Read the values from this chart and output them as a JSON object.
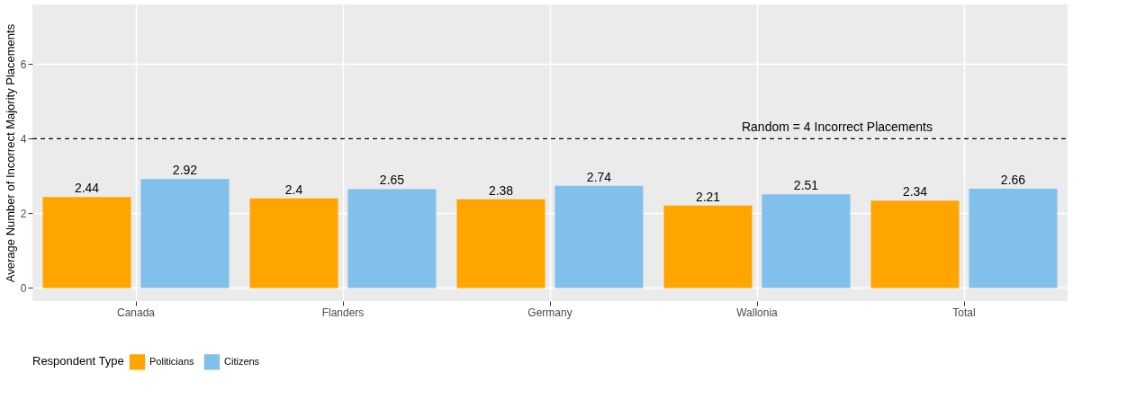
{
  "chart_data": {
    "type": "bar",
    "ylabel": "Average Number of Incorrect Majority Placements",
    "legend_title": "Respondent Type",
    "categories": [
      "Canada",
      "Flanders",
      "Germany",
      "Wallonia",
      "Total"
    ],
    "series": [
      {
        "name": "Politicians",
        "color": "#ffa500",
        "values": [
          2.44,
          2.4,
          2.38,
          2.21,
          2.34
        ]
      },
      {
        "name": "Citizens",
        "color": "#80c0eb",
        "values": [
          2.92,
          2.65,
          2.74,
          2.51,
          2.66
        ]
      }
    ],
    "ylim": [
      -0.35,
      7.6
    ],
    "yticks": [
      0,
      2,
      4,
      6
    ],
    "grid": true,
    "legend": "bottom",
    "data_labels": true,
    "ref_lines": [
      {
        "axis": "y",
        "value": 4,
        "label": "Random = 4 Incorrect Placements",
        "line_style": "dashed",
        "color": "#000000"
      }
    ]
  }
}
